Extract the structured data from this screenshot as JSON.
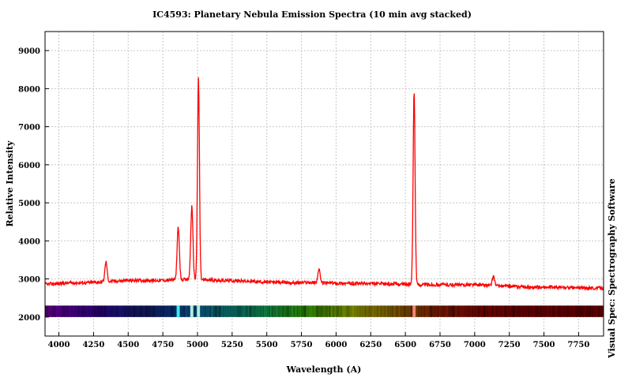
{
  "chart_data": {
    "type": "line",
    "title": "IC4593: Planetary Nebula Emission Spectra (10 min avg stacked)",
    "xlabel": "Wavelength (A)",
    "ylabel": "Relative Intensity",
    "credit": "Visual Spec: Spectrography Software",
    "xlim": [
      3900,
      7930
    ],
    "ylim": [
      1500,
      9500
    ],
    "x_ticks": [
      4000,
      4250,
      4500,
      4750,
      5000,
      5250,
      5500,
      5750,
      6000,
      6250,
      6500,
      6750,
      7000,
      7250,
      7500,
      7750
    ],
    "y_ticks": [
      2000,
      3000,
      4000,
      5000,
      6000,
      7000,
      8000,
      9000
    ],
    "grid": true,
    "line_color": "#ff0000",
    "baseline": [
      [
        3900,
        2860
      ],
      [
        4000,
        2880
      ],
      [
        4100,
        2900
      ],
      [
        4200,
        2900
      ],
      [
        4300,
        2920
      ],
      [
        4400,
        2940
      ],
      [
        4500,
        2960
      ],
      [
        4600,
        2960
      ],
      [
        4700,
        2960
      ],
      [
        4800,
        2970
      ],
      [
        4900,
        2980
      ],
      [
        5000,
        2980
      ],
      [
        5100,
        2970
      ],
      [
        5200,
        2960
      ],
      [
        5300,
        2950
      ],
      [
        5400,
        2930
      ],
      [
        5500,
        2920
      ],
      [
        5600,
        2910
      ],
      [
        5700,
        2900
      ],
      [
        5800,
        2910
      ],
      [
        5900,
        2900
      ],
      [
        6000,
        2890
      ],
      [
        6100,
        2880
      ],
      [
        6200,
        2880
      ],
      [
        6300,
        2870
      ],
      [
        6400,
        2870
      ],
      [
        6500,
        2860
      ],
      [
        6600,
        2850
      ],
      [
        6700,
        2850
      ],
      [
        6800,
        2850
      ],
      [
        6900,
        2840
      ],
      [
        7000,
        2850
      ],
      [
        7100,
        2830
      ],
      [
        7200,
        2810
      ],
      [
        7300,
        2800
      ],
      [
        7400,
        2780
      ],
      [
        7500,
        2780
      ],
      [
        7600,
        2780
      ],
      [
        7700,
        2770
      ],
      [
        7800,
        2760
      ],
      [
        7930,
        2760
      ]
    ],
    "emission_lines": [
      {
        "x": 4340,
        "y": 3450
      },
      {
        "x": 4861,
        "y": 4350
      },
      {
        "x": 4959,
        "y": 4900
      },
      {
        "x": 5007,
        "y": 8300
      },
      {
        "x": 5876,
        "y": 3250
      },
      {
        "x": 6563,
        "y": 7950
      },
      {
        "x": 7136,
        "y": 3080
      }
    ],
    "spectrum_strip": {
      "y_range": [
        2000,
        2300
      ],
      "bright_bands": [
        4861,
        4959,
        5007,
        6563
      ]
    }
  }
}
